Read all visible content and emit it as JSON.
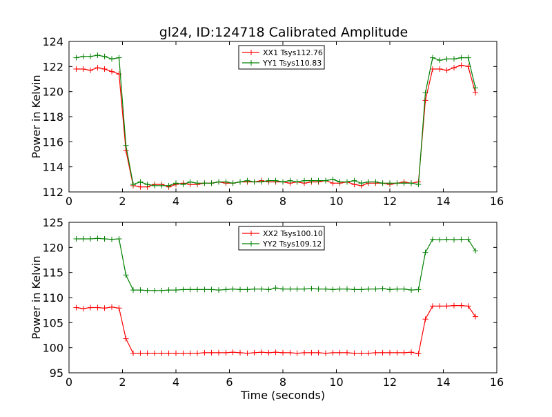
{
  "chart_data": {
    "title": "gl24, ID:124718 Calibrated Amplitude",
    "panels": [
      {
        "type": "line",
        "xlabel": "",
        "ylabel": "Power in Kelvin",
        "xlim": [
          0,
          16
        ],
        "ylim": [
          112,
          124
        ],
        "xticks": [
          "0",
          "2",
          "4",
          "6",
          "8",
          "10",
          "12",
          "14",
          "16"
        ],
        "yticks": [
          "112",
          "114",
          "116",
          "118",
          "120",
          "122",
          "124"
        ],
        "grid": false,
        "legend_position": "top-center",
        "x": [
          0.27,
          0.53,
          0.8,
          1.07,
          1.33,
          1.6,
          1.87,
          2.13,
          2.4,
          2.67,
          2.93,
          3.2,
          3.47,
          3.73,
          4.0,
          4.27,
          4.53,
          4.8,
          5.07,
          5.33,
          5.6,
          5.87,
          6.13,
          6.4,
          6.67,
          6.93,
          7.2,
          7.47,
          7.73,
          8.0,
          8.27,
          8.53,
          8.8,
          9.07,
          9.33,
          9.6,
          9.87,
          10.13,
          10.4,
          10.67,
          10.93,
          11.2,
          11.47,
          11.73,
          12.0,
          12.27,
          12.53,
          12.8,
          13.07,
          13.33,
          13.6,
          13.87,
          14.13,
          14.4,
          14.67,
          14.93,
          15.2
        ],
        "series": [
          {
            "name": "XX1 Tsys112.76",
            "color": "#ff0000",
            "values": [
              121.8,
              121.8,
              121.7,
              121.9,
              121.8,
              121.6,
              121.4,
              115.3,
              112.5,
              112.4,
              112.4,
              112.6,
              112.6,
              112.4,
              112.6,
              112.7,
              112.6,
              112.6,
              112.7,
              112.7,
              112.8,
              112.7,
              112.7,
              112.8,
              112.8,
              112.8,
              112.9,
              112.8,
              112.8,
              112.8,
              112.7,
              112.8,
              112.7,
              112.8,
              112.8,
              112.9,
              112.7,
              112.7,
              112.8,
              112.6,
              112.5,
              112.7,
              112.7,
              112.7,
              112.6,
              112.7,
              112.8,
              112.7,
              112.8,
              119.3,
              121.8,
              121.8,
              121.7,
              121.9,
              122.1,
              122.0,
              119.9
            ]
          },
          {
            "name": "YY1 Tsys110.83",
            "color": "#008000",
            "values": [
              122.7,
              122.8,
              122.8,
              122.9,
              122.8,
              122.6,
              122.7,
              115.7,
              112.6,
              112.8,
              112.6,
              112.5,
              112.5,
              112.5,
              112.7,
              112.6,
              112.8,
              112.7,
              112.7,
              112.7,
              112.8,
              112.8,
              112.7,
              112.8,
              112.9,
              112.8,
              112.8,
              112.9,
              112.9,
              112.8,
              112.9,
              112.8,
              112.9,
              112.9,
              112.9,
              112.9,
              113.0,
              112.8,
              112.8,
              112.9,
              112.7,
              112.8,
              112.8,
              112.7,
              112.7,
              112.7,
              112.7,
              112.7,
              112.6,
              119.9,
              122.7,
              122.5,
              122.6,
              122.6,
              122.7,
              122.7,
              120.3
            ]
          }
        ]
      },
      {
        "type": "line",
        "xlabel": "Time (seconds)",
        "ylabel": "Power in Kelvin",
        "xlim": [
          0,
          16
        ],
        "ylim": [
          95,
          125
        ],
        "xticks": [
          "0",
          "2",
          "4",
          "6",
          "8",
          "10",
          "12",
          "14",
          "16"
        ],
        "yticks": [
          "95",
          "100",
          "105",
          "110",
          "115",
          "120",
          "125"
        ],
        "grid": false,
        "legend_position": "top-center",
        "x": [
          0.27,
          0.53,
          0.8,
          1.07,
          1.33,
          1.6,
          1.87,
          2.13,
          2.4,
          2.67,
          2.93,
          3.2,
          3.47,
          3.73,
          4.0,
          4.27,
          4.53,
          4.8,
          5.07,
          5.33,
          5.6,
          5.87,
          6.13,
          6.4,
          6.67,
          6.93,
          7.2,
          7.47,
          7.73,
          8.0,
          8.27,
          8.53,
          8.8,
          9.07,
          9.33,
          9.6,
          9.87,
          10.13,
          10.4,
          10.67,
          10.93,
          11.2,
          11.47,
          11.73,
          12.0,
          12.27,
          12.53,
          12.8,
          13.07,
          13.33,
          13.6,
          13.87,
          14.13,
          14.4,
          14.67,
          14.93,
          15.2
        ],
        "series": [
          {
            "name": "XX2 Tsys100.10",
            "color": "#ff0000",
            "values": [
              108.0,
              107.8,
              108.0,
              108.0,
              107.9,
              108.1,
              107.9,
              101.8,
              98.9,
              98.9,
              98.9,
              98.9,
              98.9,
              98.9,
              98.9,
              98.9,
              98.9,
              98.9,
              99.0,
              99.0,
              99.0,
              99.0,
              99.1,
              99.0,
              98.9,
              99.0,
              99.1,
              99.0,
              99.1,
              99.0,
              99.0,
              98.9,
              99.0,
              99.0,
              99.0,
              98.9,
              99.0,
              99.0,
              99.0,
              98.9,
              98.9,
              98.9,
              99.0,
              99.0,
              99.0,
              99.0,
              99.0,
              99.1,
              98.8,
              105.7,
              108.3,
              108.3,
              108.3,
              108.4,
              108.4,
              108.3,
              106.2
            ]
          },
          {
            "name": "YY2 Tsys109.12",
            "color": "#008000",
            "values": [
              121.7,
              121.7,
              121.7,
              121.8,
              121.7,
              121.6,
              121.7,
              114.5,
              111.5,
              111.5,
              111.4,
              111.4,
              111.4,
              111.5,
              111.5,
              111.6,
              111.6,
              111.6,
              111.6,
              111.6,
              111.5,
              111.6,
              111.7,
              111.6,
              111.6,
              111.7,
              111.7,
              111.6,
              111.9,
              111.7,
              111.7,
              111.7,
              111.7,
              111.8,
              111.7,
              111.7,
              111.6,
              111.7,
              111.7,
              111.6,
              111.6,
              111.7,
              111.7,
              111.8,
              111.6,
              111.7,
              111.7,
              111.5,
              111.6,
              119.0,
              121.6,
              121.5,
              121.6,
              121.5,
              121.6,
              121.6,
              119.3
            ]
          }
        ]
      }
    ]
  }
}
